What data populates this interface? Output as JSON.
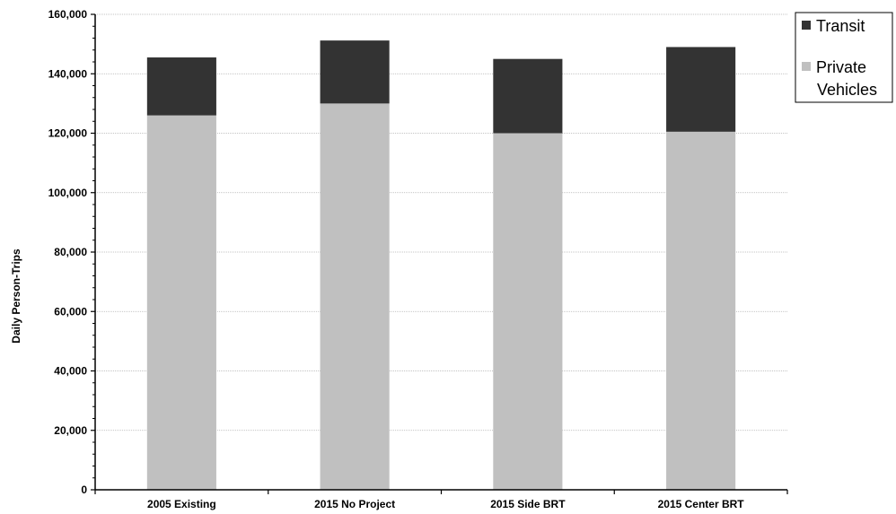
{
  "chart_data": {
    "type": "bar",
    "stacked": true,
    "title": "",
    "xlabel": "",
    "ylabel": "Daily Person-Trips",
    "ylim": [
      0,
      160000
    ],
    "yticks": [
      "0",
      "20,000",
      "40,000",
      "60,000",
      "80,000",
      "100,000",
      "120,000",
      "140,000",
      "160,000"
    ],
    "ytick_values": [
      0,
      20000,
      40000,
      60000,
      80000,
      100000,
      120000,
      140000,
      160000
    ],
    "grid": true,
    "legend_position": "top-right",
    "categories": [
      "2005 Existing",
      "2015 No Project",
      "2015 Side BRT",
      "2015 Center BRT"
    ],
    "series": [
      {
        "name": "Private Vehicles",
        "color": "#c0c0c0",
        "values": [
          126000,
          130000,
          120000,
          120500
        ]
      },
      {
        "name": "Transit",
        "color": "#333333",
        "values": [
          19500,
          21200,
          25000,
          28500
        ]
      }
    ]
  },
  "legend": {
    "transit_label": "Transit",
    "private_label_line1": "Private",
    "private_label_line2": "Vehicles"
  }
}
